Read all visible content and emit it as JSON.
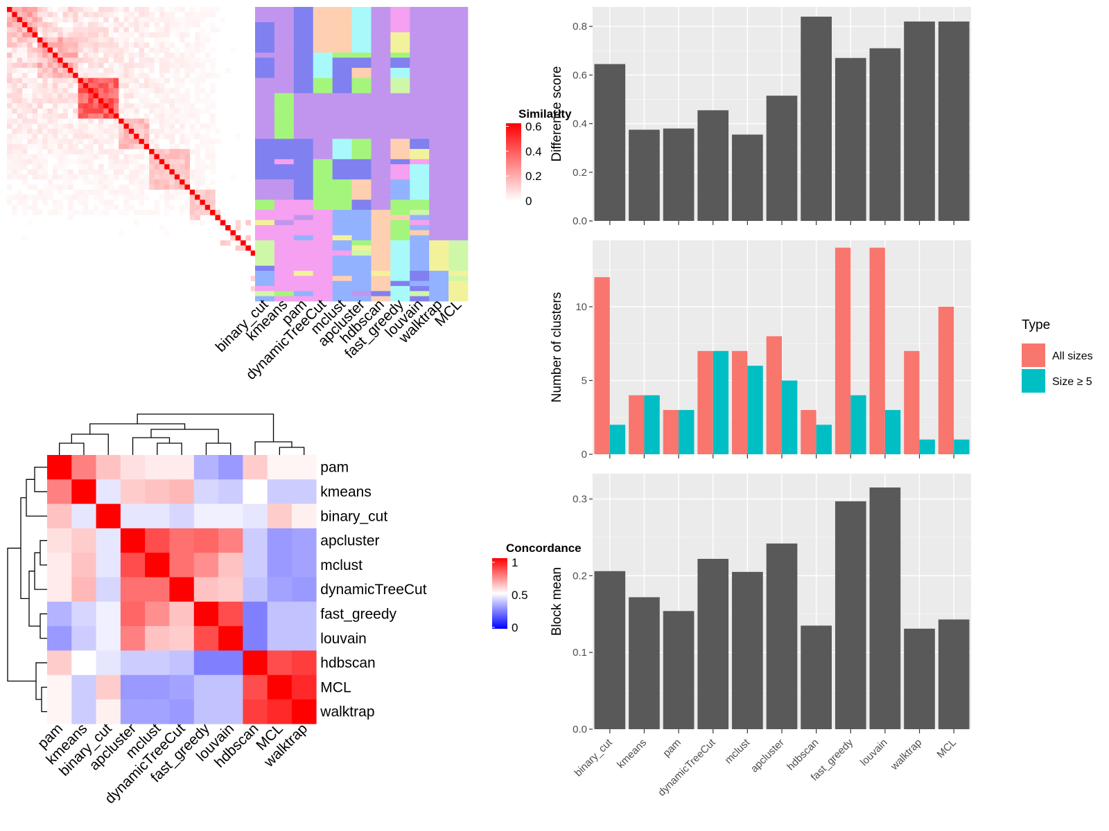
{
  "methods": [
    "binary_cut",
    "kmeans",
    "pam",
    "dynamicTreeCut",
    "mclust",
    "apcluster",
    "hdbscan",
    "fast_greedy",
    "louvain",
    "walktrap",
    "MCL"
  ],
  "similarity_heatmap": {
    "legend_title": "Similarity",
    "legend_ticks": [
      "0",
      "0.2",
      "0.4",
      "0.6"
    ],
    "color_low": "#ffffff",
    "color_high": "#ff0000"
  },
  "membership_heatmap": {
    "palette": [
      "#c195ee",
      "#8080f0",
      "#a4f57c",
      "#f5a0f0",
      "#a8fafa",
      "#ffcfb1",
      "#92b2ff",
      "#f2f29b",
      "#cff7a8"
    ]
  },
  "concordance_heatmap": {
    "legend_title": "Concordance",
    "legend_ticks": [
      "0",
      "0.5",
      "1"
    ],
    "color_low": "#0000ff",
    "color_mid": "#ffffff",
    "color_high": "#ff0000",
    "order": [
      "pam",
      "kmeans",
      "binary_cut",
      "apcluster",
      "mclust",
      "dynamicTreeCut",
      "fast_greedy",
      "louvain",
      "hdbscan",
      "MCL",
      "walktrap"
    ],
    "matrix": [
      [
        1.0,
        0.75,
        0.62,
        0.56,
        0.54,
        0.54,
        0.35,
        0.3,
        0.6,
        0.52,
        0.52
      ],
      [
        0.75,
        1.0,
        0.45,
        0.6,
        0.62,
        0.64,
        0.42,
        0.4,
        0.5,
        0.4,
        0.4
      ],
      [
        0.62,
        0.45,
        1.0,
        0.45,
        0.45,
        0.42,
        0.47,
        0.47,
        0.45,
        0.6,
        0.53
      ],
      [
        0.56,
        0.6,
        0.45,
        1.0,
        0.85,
        0.78,
        0.8,
        0.75,
        0.4,
        0.3,
        0.32
      ],
      [
        0.54,
        0.62,
        0.45,
        0.85,
        1.0,
        0.78,
        0.72,
        0.62,
        0.4,
        0.3,
        0.32
      ],
      [
        0.54,
        0.64,
        0.42,
        0.78,
        0.78,
        1.0,
        0.62,
        0.6,
        0.38,
        0.32,
        0.3
      ],
      [
        0.35,
        0.42,
        0.47,
        0.8,
        0.72,
        0.62,
        1.0,
        0.85,
        0.25,
        0.38,
        0.38
      ],
      [
        0.3,
        0.4,
        0.47,
        0.75,
        0.62,
        0.6,
        0.85,
        1.0,
        0.25,
        0.38,
        0.38
      ],
      [
        0.6,
        0.5,
        0.45,
        0.4,
        0.4,
        0.38,
        0.25,
        0.25,
        1.0,
        0.85,
        0.88
      ],
      [
        0.52,
        0.4,
        0.6,
        0.3,
        0.3,
        0.32,
        0.38,
        0.38,
        0.85,
        1.0,
        0.92
      ],
      [
        0.52,
        0.4,
        0.53,
        0.32,
        0.32,
        0.3,
        0.38,
        0.38,
        0.88,
        0.92,
        1.0
      ]
    ]
  },
  "chart_data": [
    {
      "type": "bar",
      "categories": [
        "binary_cut",
        "kmeans",
        "pam",
        "dynamicTreeCut",
        "mclust",
        "apcluster",
        "hdbscan",
        "fast_greedy",
        "louvain",
        "walktrap",
        "MCL"
      ],
      "values": [
        0.645,
        0.375,
        0.38,
        0.455,
        0.355,
        0.515,
        0.84,
        0.67,
        0.71,
        0.82,
        0.82
      ],
      "ylabel": "Difference score",
      "ylim": [
        0,
        0.88
      ],
      "yticks": [
        "0.0",
        "0.2",
        "0.4",
        "0.6",
        "0.8"
      ],
      "bar_color": "#595959"
    },
    {
      "type": "bar",
      "categories": [
        "binary_cut",
        "kmeans",
        "pam",
        "dynamicTreeCut",
        "mclust",
        "apcluster",
        "hdbscan",
        "fast_greedy",
        "louvain",
        "walktrap",
        "MCL"
      ],
      "series": [
        {
          "name": "All sizes",
          "color": "#f8766d",
          "values": [
            12,
            4,
            3,
            7,
            7,
            8,
            3,
            14,
            14,
            7,
            10
          ]
        },
        {
          "name": "Size ≥ 5",
          "color": "#00bfc4",
          "values": [
            2,
            4,
            3,
            7,
            6,
            5,
            2,
            4,
            3,
            1,
            1
          ]
        }
      ],
      "ylabel": "Number of clusters",
      "ylim": [
        0,
        14.5
      ],
      "yticks": [
        "0",
        "5",
        "10"
      ],
      "legend_title": "Type",
      "legend_position": "right"
    },
    {
      "type": "bar",
      "categories": [
        "binary_cut",
        "kmeans",
        "pam",
        "dynamicTreeCut",
        "mclust",
        "apcluster",
        "hdbscan",
        "fast_greedy",
        "louvain",
        "walktrap",
        "MCL"
      ],
      "values": [
        0.206,
        0.172,
        0.154,
        0.222,
        0.205,
        0.242,
        0.135,
        0.297,
        0.315,
        0.131,
        0.143
      ],
      "ylabel": "Block mean",
      "ylim": [
        0,
        0.333
      ],
      "yticks": [
        "0.0",
        "0.1",
        "0.2",
        "0.3"
      ],
      "bar_color": "#595959"
    }
  ]
}
